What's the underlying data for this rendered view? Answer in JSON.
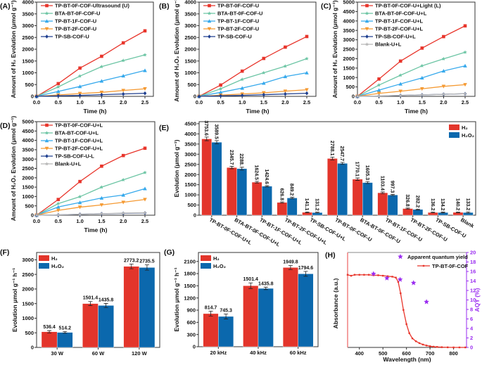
{
  "colors": {
    "red": "#e8352b",
    "green": "#6cc5a4",
    "blue": "#36a9ec",
    "orange": "#f59a33",
    "navy": "#1f3f8f",
    "gray": "#b8b8b8",
    "bar_h2": "#e3352b",
    "bar_h2o2": "#0b68ad",
    "aqy": "#9a2cf0"
  },
  "chart_data": [
    {
      "panel": "(A)",
      "type": "line",
      "xlabel": "Time (h)",
      "ylabel": "Amount of H₂ Evolution (μmol g⁻¹)",
      "xlim": [
        0,
        2.5
      ],
      "ylim": [
        0,
        4000
      ],
      "ystep": 500,
      "xticks": [
        "0.0",
        "0.5",
        "1.0",
        "1.5",
        "2.0",
        "2.5"
      ],
      "x": [
        0,
        0.5,
        1,
        1.5,
        2,
        2.5
      ],
      "legend": "top-left",
      "series": [
        {
          "name": "TP-BT-0F-COF-Ultrasound (U)",
          "color": "red",
          "marker": "square",
          "values": [
            0,
            540,
            1200,
            1700,
            2270,
            2780
          ]
        },
        {
          "name": "BTA-BT-0F-COF-U",
          "color": "green",
          "marker": "star",
          "values": [
            0,
            400,
            860,
            1260,
            1520,
            1760
          ]
        },
        {
          "name": "TP-BT-1F-COF-U",
          "color": "blue",
          "marker": "triangle",
          "values": [
            0,
            210,
            420,
            650,
            870,
            1100
          ]
        },
        {
          "name": "TP-BT-2F-COF-U",
          "color": "orange",
          "marker": "triangle-down",
          "values": [
            0,
            60,
            120,
            170,
            250,
            320
          ]
        },
        {
          "name": "TP-SB-COF-U",
          "color": "navy",
          "marker": "diamond",
          "values": [
            0,
            20,
            40,
            70,
            100,
            130
          ]
        }
      ]
    },
    {
      "panel": "(B)",
      "type": "line",
      "xlabel": "Time (h)",
      "ylabel": "Amount of H₂O₂ Evolution (μmol g⁻¹)",
      "xlim": [
        0,
        2.5
      ],
      "ylim": [
        0,
        4000
      ],
      "ystep": 500,
      "xticks": [
        "0.0",
        "0.5",
        "1.0",
        "1.5",
        "2.0",
        "2.5"
      ],
      "x": [
        0,
        0.5,
        1,
        1.5,
        2,
        2.5
      ],
      "legend": "top-left",
      "series": [
        {
          "name": "TP-BT-0F-COF-U",
          "color": "red",
          "marker": "square",
          "values": [
            0,
            480,
            1070,
            1610,
            2090,
            2540
          ]
        },
        {
          "name": "BTA-BT-0F-COF-U",
          "color": "green",
          "marker": "star",
          "values": [
            0,
            320,
            720,
            1000,
            1280,
            1600
          ]
        },
        {
          "name": "TP-BT-1F-COF-U",
          "color": "blue",
          "marker": "triangle",
          "values": [
            0,
            170,
            350,
            560,
            840,
            1000
          ]
        },
        {
          "name": "TP-BT-2F-COF-U",
          "color": "orange",
          "marker": "triangle-down",
          "values": [
            0,
            50,
            100,
            150,
            220,
            280
          ]
        },
        {
          "name": "TP-SB-COF-U",
          "color": "navy",
          "marker": "diamond",
          "values": [
            0,
            20,
            40,
            70,
            100,
            130
          ]
        }
      ]
    },
    {
      "panel": "(C)",
      "type": "line",
      "xlabel": "Time (h)",
      "ylabel": "Amount of H₂ Evolution (μmol g⁻¹)",
      "xlim": [
        0,
        2.5
      ],
      "ylim": [
        0,
        5000
      ],
      "ystep": 500,
      "xticks": [
        "0.0",
        "0.5",
        "1.0",
        "1.5",
        "2.0",
        "2.5"
      ],
      "x": [
        0,
        0.5,
        1,
        1.5,
        2,
        2.5
      ],
      "legend": "top-left",
      "series": [
        {
          "name": "TP-BT-0F-COF-U+Light (L)",
          "color": "red",
          "marker": "square",
          "values": [
            0,
            920,
            1870,
            2560,
            3170,
            3740
          ]
        },
        {
          "name": "BTA-BT-0F-COF-U+L",
          "color": "green",
          "marker": "star",
          "values": [
            0,
            600,
            1120,
            1620,
            1990,
            2340
          ]
        },
        {
          "name": "TP-BT-1F-COF-U+L",
          "color": "blue",
          "marker": "triangle",
          "values": [
            0,
            330,
            660,
            980,
            1350,
            1620
          ]
        },
        {
          "name": "TP-BT-2F-COF-U+L",
          "color": "orange",
          "marker": "triangle-down",
          "values": [
            0,
            160,
            270,
            400,
            530,
            620
          ]
        },
        {
          "name": "TP-SB-COF-U+L",
          "color": "navy",
          "marker": "diamond",
          "values": [
            0,
            20,
            50,
            80,
            110,
            140
          ]
        },
        {
          "name": "Blank-U+L",
          "color": "gray",
          "marker": "star",
          "values": [
            0,
            20,
            50,
            80,
            110,
            140
          ]
        }
      ]
    },
    {
      "panel": "(D)",
      "type": "line",
      "xlabel": "Time (h)",
      "ylabel": "Amount of H₂O₂ Evolution (μmol g⁻¹)",
      "xlim": [
        0,
        2.5
      ],
      "ylim": [
        0,
        5000
      ],
      "ystep": 500,
      "xticks": [
        "0.0",
        "0.5",
        "1.0",
        "1.5",
        "2.0",
        "2.5"
      ],
      "x": [
        0,
        0.5,
        1,
        1.5,
        2,
        2.5
      ],
      "legend": "top-left",
      "series": [
        {
          "name": "TP-BT-0F-COF-U+L",
          "color": "red",
          "marker": "square",
          "values": [
            0,
            840,
            1800,
            2620,
            3190,
            3580
          ]
        },
        {
          "name": "BTA-BT-COF-U+L",
          "color": "green",
          "marker": "star",
          "values": [
            0,
            620,
            990,
            1500,
            1890,
            2280
          ]
        },
        {
          "name": "TP-BT-1F-COF-U+L",
          "color": "blue",
          "marker": "triangle",
          "values": [
            0,
            440,
            680,
            920,
            1080,
            1420
          ]
        },
        {
          "name": "TP-BT-2F-COF-U+L",
          "color": "orange",
          "marker": "triangle-down",
          "values": [
            0,
            260,
            430,
            550,
            690,
            840
          ]
        },
        {
          "name": "TP-SB-COF-U-L",
          "color": "navy",
          "marker": "diamond",
          "values": [
            0,
            20,
            50,
            80,
            100,
            120
          ]
        },
        {
          "name": "Blank-U+L",
          "color": "gray",
          "marker": "star",
          "values": [
            0,
            20,
            50,
            80,
            110,
            130
          ]
        }
      ]
    },
    {
      "panel": "(E)",
      "type": "bar",
      "ylabel": "Evolution (μmol g⁻¹)",
      "ylim": [
        0,
        4600
      ],
      "ystep": 500,
      "ytickmax": 4500,
      "legend": "top-right",
      "label_orientation": "vertical",
      "categories": [
        "TP-BT-0F-COF-U+L",
        "BTA-BT-0F-COF-U+L",
        "TP-BT-1F-COF-U+L",
        "TP-BT-2F-COF-U+L",
        "TP-SB-COF-U+L",
        "TP-BT-0F-COF-U",
        "BTA-BT-0F-COF-U",
        "TP-BT-1F-COF-U",
        "TP-BT-2F-COF-U",
        "TP-SB-COF-U",
        "Blank"
      ],
      "series": [
        {
          "name": "H₂",
          "color": "bar_h2",
          "values": [
            3753.6,
            2345.7,
            1624.5,
            626.8,
            141.1,
            2788.1,
            1770.1,
            1103.4,
            326.8,
            136.2,
            140.2
          ],
          "labels": [
            "3753.6",
            "2345.7",
            "1624.5",
            "626.8",
            "141.1",
            "2788.1",
            "1770.1",
            "1103.4",
            "326.8",
            "136.2",
            "140.2"
          ],
          "errors": [
            90,
            60,
            40,
            30,
            20,
            70,
            60,
            40,
            25,
            20,
            20
          ]
        },
        {
          "name": "H₂O₂",
          "color": "bar_h2o2",
          "values": [
            3589.5,
            2288,
            1424.6,
            849.2,
            131.2,
            2547.7,
            1605.3,
            997.3,
            282.2,
            134.2,
            133.2
          ],
          "labels": [
            "3589.5",
            "2288.",
            "1424.6",
            "849.2",
            "131.2",
            "2547.7",
            "1605.3",
            "997.3",
            "282.2",
            "134.2",
            "133.2"
          ],
          "errors": [
            80,
            70,
            30,
            40,
            20,
            50,
            50,
            30,
            20,
            20,
            30
          ]
        }
      ]
    },
    {
      "panel": "(F)",
      "type": "bar",
      "ylabel": "Evolution μmol g⁻¹ h⁻¹",
      "ylim": [
        0,
        3250
      ],
      "ystep": 500,
      "ytickmax": 3000,
      "legend": "top-left",
      "label_orientation": "horizontal",
      "categories": [
        "30 W",
        "60 W",
        "120 W"
      ],
      "series": [
        {
          "name": "H₂",
          "color": "bar_h2",
          "values": [
            536.4,
            1501.4,
            2773.2
          ],
          "labels": [
            "536.4",
            "1501.4",
            "2773.2"
          ],
          "errors": [
            40,
            70,
            80
          ]
        },
        {
          "name": "H₂O₂",
          "color": "bar_h2o2",
          "values": [
            514.2,
            1435.8,
            2735.5
          ],
          "labels": [
            "514.2",
            "1435.8",
            "2735.5"
          ],
          "errors": [
            30,
            70,
            90
          ]
        }
      ]
    },
    {
      "panel": "(G)",
      "type": "bar",
      "ylabel": "Evolution μmol g⁻¹ h⁻¹",
      "ylim": [
        0,
        2320
      ],
      "ystep": 300,
      "ytickmax": 2100,
      "legend": "top-left",
      "label_orientation": "horizontal",
      "categories": [
        "20 kHz",
        "40 kHz",
        "60 kHz"
      ],
      "series": [
        {
          "name": "H₂",
          "color": "bar_h2",
          "values": [
            814.7,
            1501.4,
            1949.8
          ],
          "labels": [
            "814.7",
            "1501.4",
            "1949.8"
          ],
          "errors": [
            60,
            70,
            50
          ]
        },
        {
          "name": "H₂O₂",
          "color": "bar_h2o2",
          "values": [
            745.3,
            1435.8,
            1794.6
          ],
          "labels": [
            "745.3",
            "1435.8",
            "1794.6"
          ],
          "errors": [
            60,
            30,
            60
          ]
        }
      ]
    },
    {
      "panel": "(H)",
      "type": "line+scatter",
      "xlabel": "Wavelength (nm)",
      "ylabel": "Absorbance (a.u.)",
      "ylabel_right": "AQY (%)",
      "xlim": [
        350,
        855
      ],
      "xticks": [
        400,
        500,
        600,
        700,
        800
      ],
      "ylim_right": [
        0,
        20
      ],
      "ystep_right": 2,
      "legend": "top-right",
      "absorbance": {
        "name": "TP-BT-0F-COF",
        "color": "red",
        "points": [
          [
            350,
            15.3
          ],
          [
            365,
            15.1
          ],
          [
            380,
            15.3
          ],
          [
            400,
            15.3
          ],
          [
            420,
            15.3
          ],
          [
            440,
            15.3
          ],
          [
            460,
            15.2
          ],
          [
            480,
            15.2
          ],
          [
            500,
            15.1
          ],
          [
            520,
            15.0
          ],
          [
            540,
            14.9
          ],
          [
            555,
            14.7
          ],
          [
            565,
            13.8
          ],
          [
            575,
            11.4
          ],
          [
            587,
            7.9
          ],
          [
            600,
            4.9
          ],
          [
            612,
            3.0
          ],
          [
            625,
            1.9
          ],
          [
            640,
            1.3
          ],
          [
            655,
            0.9
          ],
          [
            670,
            0.6
          ],
          [
            685,
            0.4
          ],
          [
            700,
            0.25
          ],
          [
            715,
            0.15
          ],
          [
            730,
            0.1
          ],
          [
            750,
            0.05
          ],
          [
            775,
            0.02
          ],
          [
            800,
            0
          ],
          [
            825,
            0
          ],
          [
            850,
            0
          ]
        ]
      },
      "aqy": {
        "name": "Apparent quantum yield",
        "color": "aqy",
        "points": [
          [
            460,
            15.5
          ],
          [
            517,
            14.6
          ],
          [
            573,
            14.3
          ],
          [
            630,
            13.6
          ],
          [
            685,
            9.6
          ]
        ]
      }
    }
  ]
}
